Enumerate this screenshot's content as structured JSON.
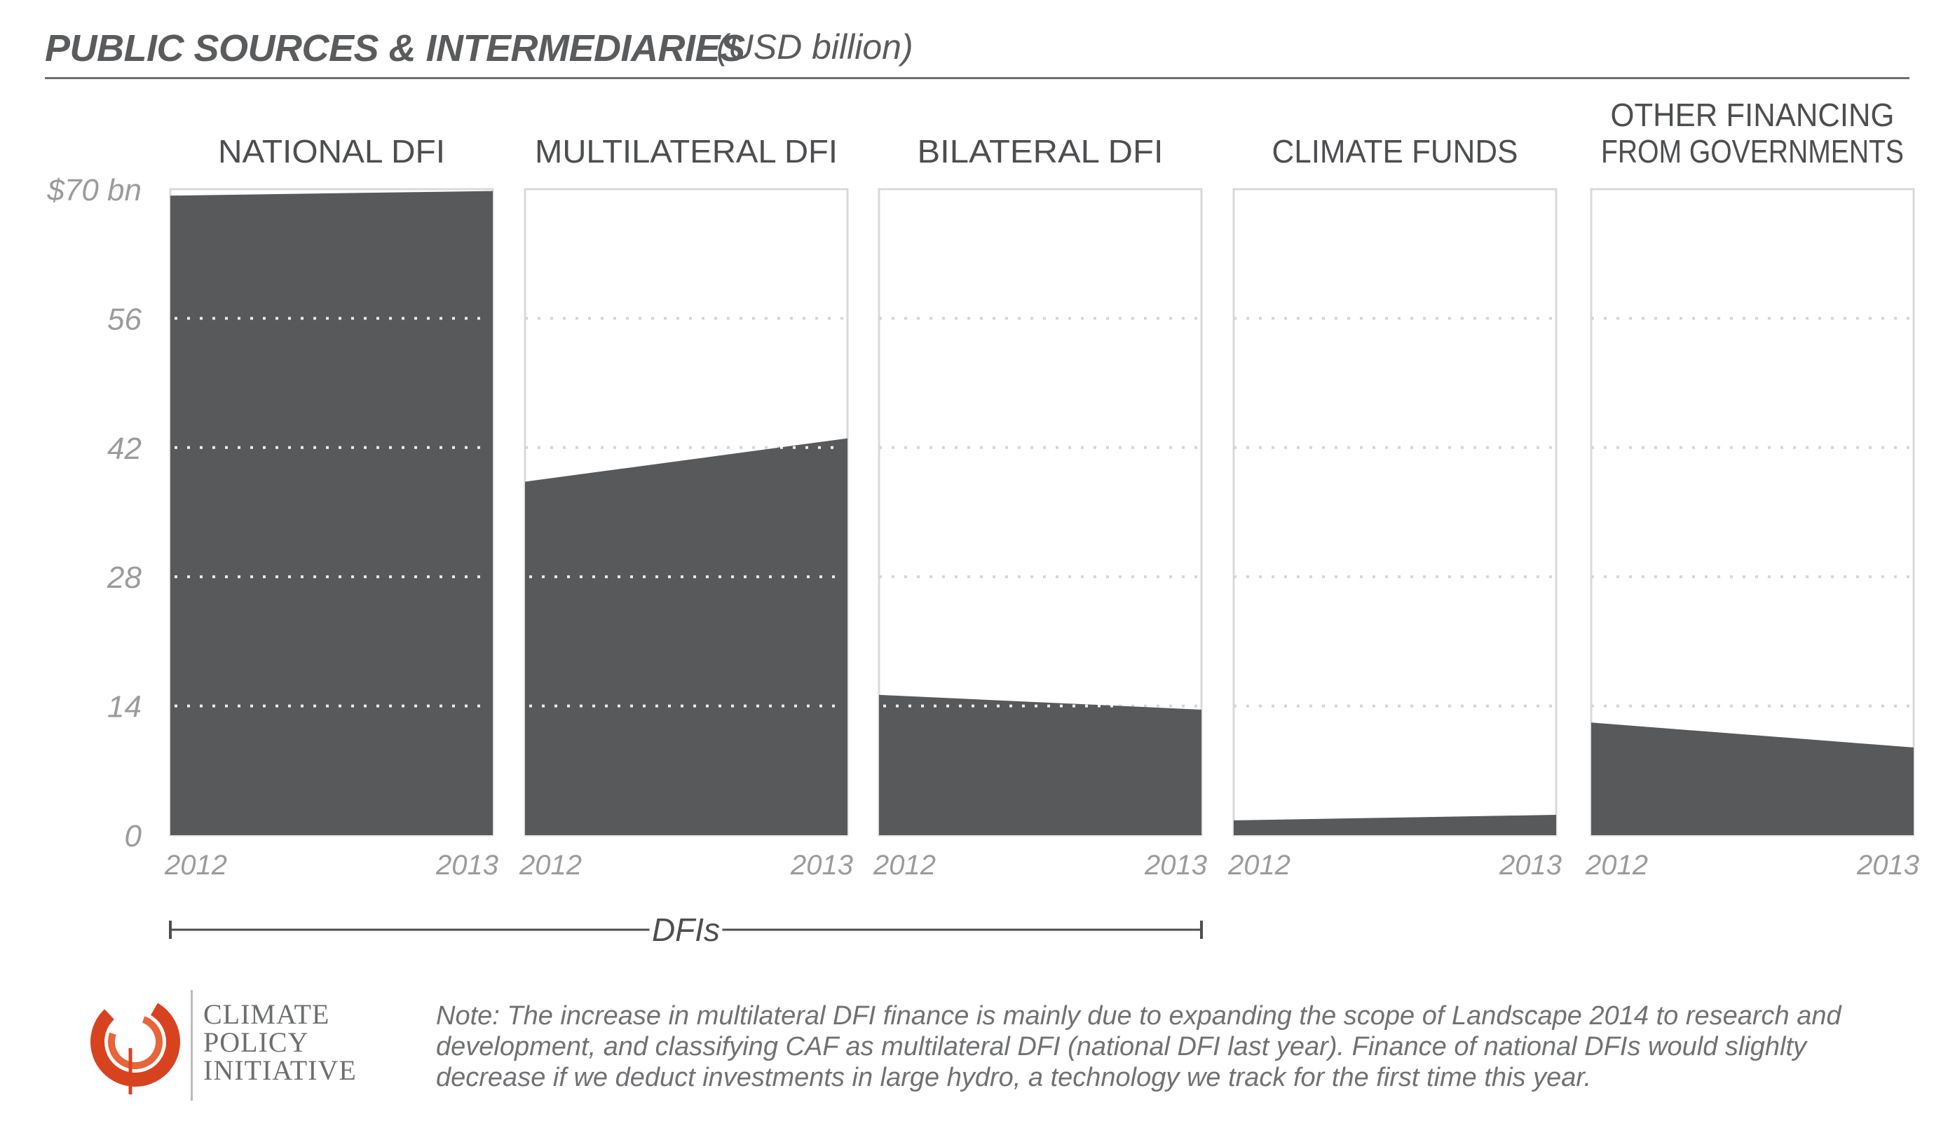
{
  "header": {
    "title": "PUBLIC SOURCES & INTERMEDIARIES",
    "unit": "(USD billion)"
  },
  "chart_data": {
    "type": "area",
    "title": "PUBLIC SOURCES & INTERMEDIARIES",
    "subtitle": "(USD billion)",
    "ylim": [
      0,
      70
    ],
    "y_ticks": [
      0,
      14,
      28,
      42,
      56,
      70
    ],
    "y_tick_labels": [
      "0",
      "14",
      "28",
      "42",
      "56",
      "$70 bn"
    ],
    "x": [
      "2012",
      "2013"
    ],
    "grid": true,
    "fill_color": "#58595b",
    "panels": [
      {
        "name": "NATIONAL DFI",
        "values": [
          69.3,
          69.8
        ]
      },
      {
        "name": "MULTILATERAL DFI",
        "values": [
          38.3,
          43.0
        ]
      },
      {
        "name": "BILATERAL DFI",
        "values": [
          15.2,
          13.6
        ]
      },
      {
        "name": "CLIMATE FUNDS",
        "values": [
          1.6,
          2.2
        ]
      },
      {
        "name": "OTHER FINANCING FROM GOVERNMENTS",
        "values": [
          12.2,
          9.5
        ]
      }
    ],
    "group_bracket": {
      "label": "DFIs",
      "panels": [
        0,
        1,
        2
      ]
    }
  },
  "footer": {
    "logo_lines": [
      "CLIMATE",
      "POLICY",
      "INITIATIVE"
    ],
    "note": "Note: The increase in multilateral DFI finance is mainly due to expanding the scope of Landscape 2014 to research and development, and classifying CAF as multilateral DFI (national DFI last year). Finance of national DFIs would slighlty decrease if we deduct investments in large hydro, a technology we track for the first time this year."
  },
  "colors": {
    "area": "#58595b",
    "grid": "#d4d5d6",
    "axis_text": "#9a9b9d",
    "logo": "#d8431f"
  }
}
